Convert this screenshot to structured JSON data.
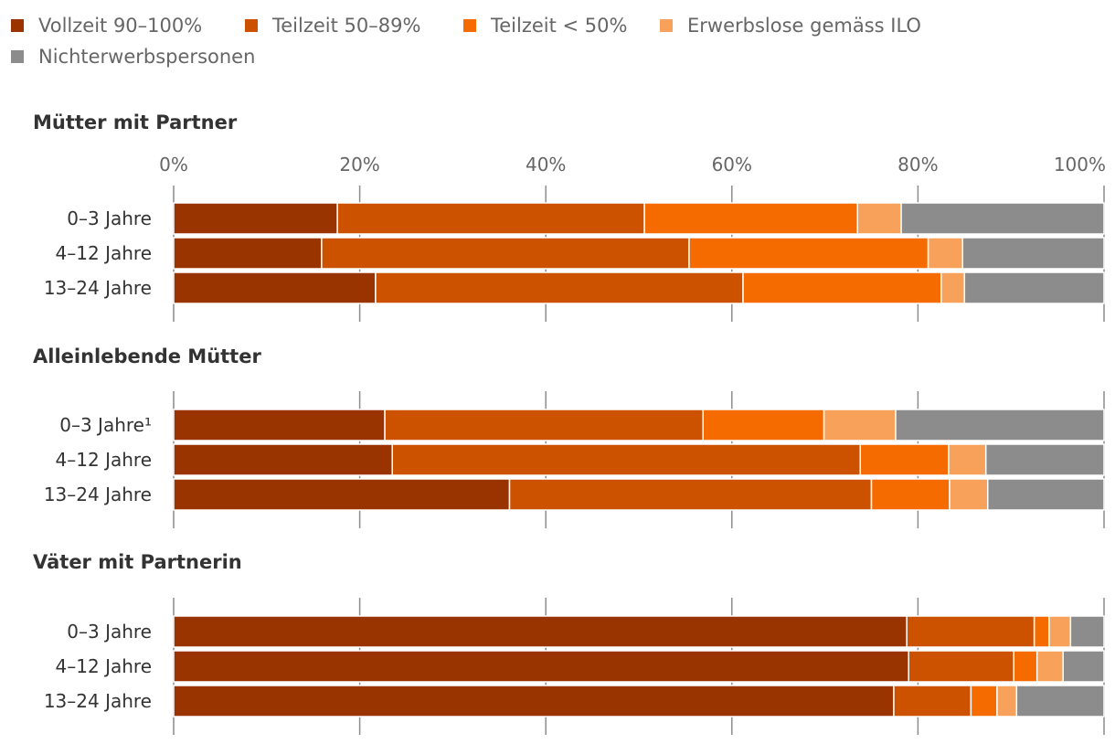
{
  "chart_data": {
    "type": "bar",
    "orientation": "horizontal",
    "stacked": true,
    "xlim": [
      0,
      100
    ],
    "x_ticks": [
      "0%",
      "20%",
      "40%",
      "60%",
      "80%",
      "100%"
    ],
    "grid": true,
    "legend_position": "top-left",
    "legend": [
      {
        "name": "Vollzeit 90–100%",
        "color": "#993300"
      },
      {
        "name": "Teilzeit 50–89%",
        "color": "#cc5200"
      },
      {
        "name": "Teilzeit < 50%",
        "color": "#f56b00"
      },
      {
        "name": "Erwerbslose gemäss ILO",
        "color": "#f7a15b"
      },
      {
        "name": "Nichterwerbspersonen",
        "color": "#8c8c8c"
      }
    ],
    "panels": [
      {
        "title": "Mütter mit Partner",
        "categories": [
          "0–3 Jahre",
          "4–12 Jahre",
          "13–24 Jahre"
        ],
        "values": [
          [
            17.6,
            33.0,
            22.9,
            4.7,
            21.8
          ],
          [
            15.9,
            39.5,
            25.7,
            3.7,
            15.2
          ],
          [
            21.7,
            39.5,
            21.3,
            2.5,
            15.0
          ]
        ]
      },
      {
        "title": "Alleinlebende Mütter",
        "categories": [
          "0–3 Jahre¹",
          "4–12 Jahre",
          "13–24 Jahre"
        ],
        "values": [
          [
            22.7,
            34.2,
            13.0,
            7.7,
            22.4
          ],
          [
            23.5,
            50.3,
            9.5,
            4.0,
            12.7
          ],
          [
            36.1,
            38.9,
            8.4,
            4.1,
            12.5
          ]
        ]
      },
      {
        "title": "Väter mit Partnerin",
        "categories": [
          "0–3 Jahre",
          "4–12 Jahre",
          "13–24 Jahre"
        ],
        "values": [
          [
            78.8,
            13.7,
            1.6,
            2.3,
            3.6
          ],
          [
            79.0,
            11.3,
            2.5,
            2.8,
            4.4
          ],
          [
            77.4,
            8.3,
            2.8,
            2.1,
            9.4
          ]
        ]
      }
    ]
  }
}
